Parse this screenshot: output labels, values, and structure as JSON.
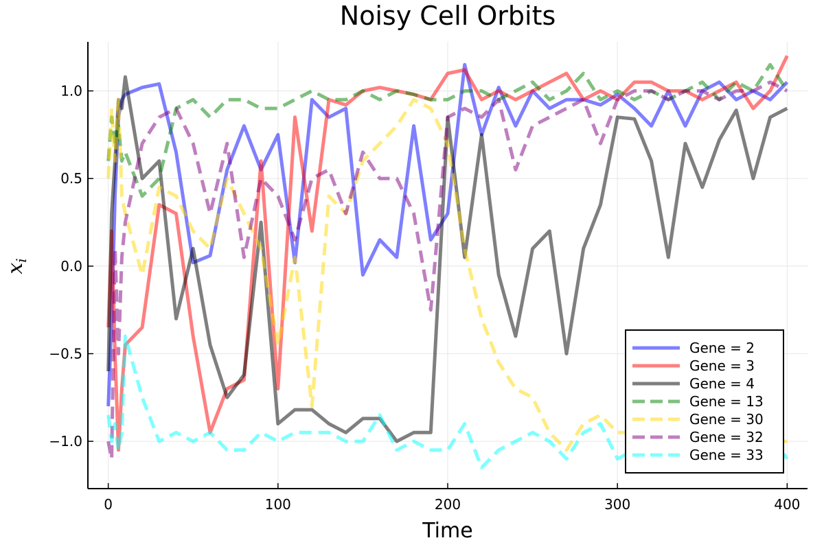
{
  "chart_data": {
    "type": "line",
    "title": "Noisy Cell Orbits",
    "xlabel": "Time",
    "ylabel": "x",
    "ylabel_subscript": "i",
    "xlim": [
      -12,
      412
    ],
    "ylim": [
      -1.27,
      1.28
    ],
    "xticks": [
      0,
      100,
      200,
      300,
      400
    ],
    "yticks": [
      1.0,
      0.5,
      0.0,
      -0.5,
      -1.0
    ],
    "ytick_labels": [
      "1.0",
      "0.5",
      "0.0",
      "−0.5",
      "−1.0"
    ],
    "grid": true,
    "legend_position": "bottom-right",
    "series": [
      {
        "name": "Gene = 2",
        "color": "#0000ff",
        "dash": "solid",
        "x": [
          0,
          2,
          4,
          6,
          8,
          10,
          20,
          30,
          40,
          50,
          60,
          70,
          80,
          90,
          100,
          110,
          120,
          130,
          140,
          150,
          160,
          170,
          180,
          190,
          200,
          210,
          220,
          230,
          240,
          250,
          260,
          270,
          280,
          290,
          300,
          310,
          320,
          330,
          340,
          350,
          360,
          370,
          380,
          390,
          400
        ],
        "y": [
          -0.8,
          -0.3,
          0.4,
          0.85,
          0.95,
          0.98,
          1.02,
          1.04,
          0.65,
          0.02,
          0.06,
          0.55,
          0.8,
          0.55,
          0.75,
          0.02,
          0.95,
          0.85,
          0.9,
          -0.05,
          0.15,
          0.05,
          0.8,
          0.15,
          0.3,
          1.15,
          0.75,
          1.02,
          0.8,
          1.0,
          0.9,
          0.95,
          0.95,
          0.92,
          0.98,
          0.9,
          0.8,
          1.0,
          0.8,
          1.0,
          1.05,
          0.95,
          1.0,
          0.95,
          1.05
        ]
      },
      {
        "name": "Gene = 3",
        "color": "#ff0000",
        "dash": "solid",
        "x": [
          0,
          2,
          4,
          6,
          8,
          10,
          20,
          30,
          40,
          50,
          60,
          70,
          80,
          90,
          100,
          110,
          120,
          130,
          140,
          150,
          160,
          170,
          180,
          190,
          200,
          210,
          220,
          230,
          240,
          250,
          260,
          270,
          280,
          290,
          300,
          310,
          320,
          330,
          340,
          350,
          360,
          370,
          380,
          390,
          400
        ],
        "y": [
          -0.35,
          0.2,
          -0.5,
          -1.05,
          -0.7,
          -0.45,
          -0.35,
          0.35,
          0.3,
          -0.4,
          -0.95,
          -0.7,
          -0.65,
          0.6,
          -0.7,
          0.85,
          0.2,
          0.95,
          0.92,
          1.0,
          1.02,
          1.0,
          0.98,
          0.95,
          1.1,
          1.12,
          0.95,
          1.0,
          0.95,
          1.0,
          1.05,
          1.1,
          0.95,
          1.0,
          0.95,
          1.05,
          1.05,
          1.0,
          1.0,
          0.95,
          1.0,
          1.05,
          0.9,
          1.0,
          1.2
        ]
      },
      {
        "name": "Gene = 4",
        "color": "#000000",
        "dash": "solid",
        "x": [
          0,
          2,
          4,
          6,
          8,
          10,
          20,
          30,
          40,
          50,
          60,
          70,
          80,
          90,
          100,
          110,
          120,
          130,
          140,
          150,
          160,
          170,
          180,
          190,
          200,
          210,
          220,
          230,
          240,
          250,
          260,
          270,
          280,
          290,
          300,
          310,
          320,
          330,
          340,
          350,
          360,
          370,
          380,
          390,
          400
        ],
        "y": [
          -0.6,
          0.3,
          0.6,
          0.95,
          0.9,
          1.08,
          0.5,
          0.6,
          -0.3,
          0.1,
          -0.45,
          -0.75,
          -0.62,
          0.25,
          -0.9,
          -0.82,
          -0.82,
          -0.9,
          -0.95,
          -0.87,
          -0.87,
          -1.0,
          -0.95,
          -0.95,
          0.85,
          0.05,
          0.75,
          -0.05,
          -0.4,
          0.1,
          0.2,
          -0.5,
          0.1,
          0.35,
          0.85,
          0.84,
          0.6,
          0.05,
          0.7,
          0.45,
          0.72,
          0.89,
          0.5,
          0.85,
          0.9
        ]
      },
      {
        "name": "Gene = 13",
        "color": "#008000",
        "dash": "dash",
        "x": [
          0,
          2,
          4,
          6,
          8,
          10,
          20,
          30,
          40,
          50,
          60,
          70,
          80,
          90,
          100,
          110,
          120,
          130,
          140,
          150,
          160,
          170,
          180,
          190,
          200,
          210,
          220,
          230,
          240,
          250,
          260,
          270,
          280,
          290,
          300,
          310,
          320,
          330,
          340,
          350,
          360,
          370,
          380,
          390,
          400
        ],
        "y": [
          0.6,
          0.85,
          0.7,
          0.8,
          0.6,
          0.65,
          0.4,
          0.5,
          0.9,
          0.95,
          0.85,
          0.95,
          0.95,
          0.9,
          0.9,
          0.95,
          1.0,
          0.95,
          0.95,
          1.0,
          0.95,
          1.0,
          0.98,
          0.95,
          0.95,
          1.0,
          1.0,
          0.95,
          1.0,
          1.05,
          0.95,
          1.0,
          1.1,
          0.95,
          1.0,
          0.95,
          1.0,
          0.95,
          1.0,
          1.05,
          0.95,
          1.05,
          1.0,
          1.15,
          1.0
        ]
      },
      {
        "name": "Gene = 30",
        "color": "#ffd700",
        "dash": "dash",
        "x": [
          0,
          2,
          4,
          6,
          8,
          10,
          20,
          30,
          40,
          50,
          60,
          70,
          80,
          90,
          100,
          110,
          120,
          130,
          140,
          150,
          160,
          170,
          180,
          190,
          200,
          210,
          220,
          230,
          240,
          250,
          260,
          270,
          280,
          290,
          300,
          310,
          320,
          330,
          340,
          350,
          360,
          370,
          380,
          390,
          400
        ],
        "y": [
          0.5,
          0.9,
          0.6,
          0.95,
          0.4,
          0.3,
          -0.05,
          0.45,
          0.4,
          0.2,
          0.1,
          0.5,
          0.3,
          0.1,
          -0.45,
          0.05,
          -0.8,
          0.4,
          0.3,
          0.6,
          0.7,
          0.8,
          0.95,
          0.9,
          0.7,
          0.1,
          -0.3,
          -0.55,
          -0.7,
          -0.75,
          -0.95,
          -1.05,
          -0.9,
          -0.85,
          -0.95,
          -0.95,
          -1.0,
          -1.0,
          -0.95,
          -1.0,
          -1.0,
          -0.95,
          -0.95,
          -1.0,
          -1.0
        ]
      },
      {
        "name": "Gene = 32",
        "color": "#800080",
        "dash": "dash",
        "x": [
          0,
          2,
          4,
          6,
          8,
          10,
          20,
          30,
          40,
          50,
          60,
          70,
          80,
          90,
          100,
          110,
          120,
          130,
          140,
          150,
          160,
          170,
          180,
          190,
          200,
          210,
          220,
          230,
          240,
          250,
          260,
          270,
          280,
          290,
          300,
          310,
          320,
          330,
          340,
          350,
          360,
          370,
          380,
          390,
          400
        ],
        "y": [
          -1.0,
          -1.1,
          0.1,
          -0.5,
          0.05,
          0.25,
          0.7,
          0.85,
          0.9,
          0.7,
          0.3,
          0.7,
          0.05,
          0.5,
          0.4,
          0.15,
          0.5,
          0.55,
          0.3,
          0.65,
          0.5,
          0.5,
          0.3,
          -0.25,
          0.85,
          0.9,
          0.85,
          0.95,
          0.55,
          0.8,
          0.85,
          0.9,
          0.95,
          0.7,
          0.95,
          1.0,
          1.0,
          0.95,
          1.0,
          1.0,
          0.95,
          1.0,
          1.0,
          1.05,
          1.0
        ]
      },
      {
        "name": "Gene = 33",
        "color": "#00ffff",
        "dash": "dash",
        "x": [
          0,
          2,
          4,
          6,
          8,
          10,
          20,
          30,
          40,
          50,
          60,
          70,
          80,
          90,
          100,
          110,
          120,
          130,
          140,
          150,
          160,
          170,
          180,
          190,
          200,
          210,
          220,
          230,
          240,
          250,
          260,
          270,
          280,
          290,
          300,
          310,
          320,
          330,
          340,
          350,
          360,
          370,
          380,
          390,
          400
        ],
        "y": [
          -0.85,
          -1.0,
          -0.9,
          -1.05,
          -0.95,
          -0.4,
          -0.75,
          -1.0,
          -0.95,
          -1.0,
          -0.95,
          -1.05,
          -1.05,
          -0.95,
          -1.0,
          -0.95,
          -0.95,
          -0.95,
          -1.0,
          -1.0,
          -0.85,
          -1.05,
          -1.0,
          -1.05,
          -1.05,
          -0.9,
          -1.15,
          -1.05,
          -1.0,
          -0.95,
          -1.0,
          -1.1,
          -0.95,
          -0.9,
          -1.1,
          -1.05,
          -1.0,
          -0.95,
          -1.05,
          -1.0,
          -0.95,
          -1.05,
          -1.0,
          -0.95,
          -1.1
        ]
      }
    ]
  }
}
